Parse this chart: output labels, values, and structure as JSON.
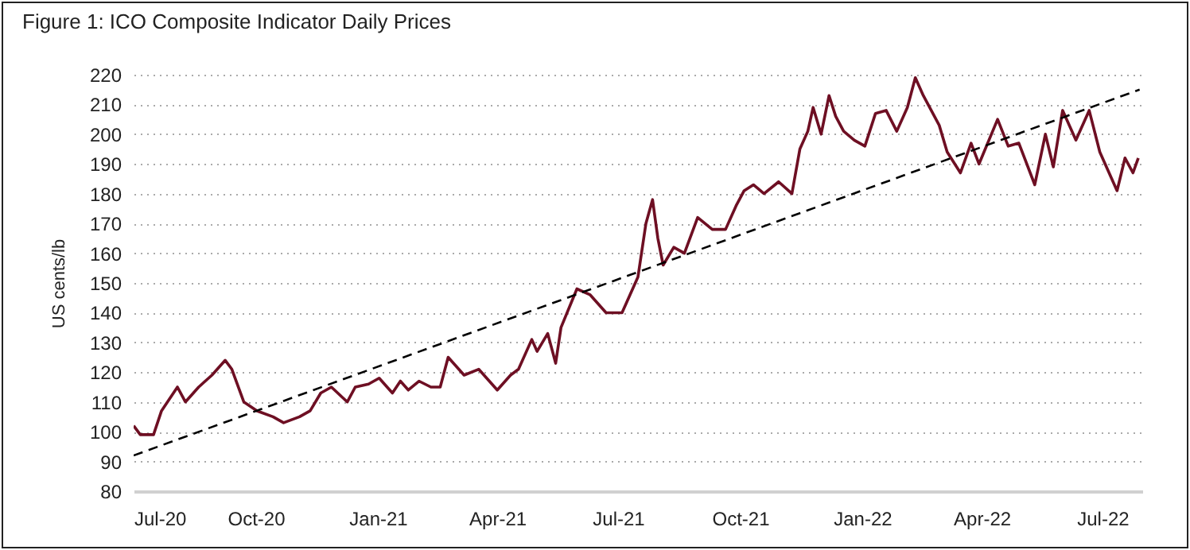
{
  "chart_data": {
    "type": "line",
    "title": "Figure 1: ICO Composite Indicator Daily Prices",
    "ylabel": "US cents/lb",
    "xlim": [
      "2020-07-01",
      "2022-07-31"
    ],
    "ylim": [
      80,
      220
    ],
    "yticks": [
      80,
      90,
      100,
      110,
      120,
      130,
      140,
      150,
      160,
      170,
      180,
      190,
      200,
      210,
      220
    ],
    "xticks": [
      {
        "value": "2020-07-01",
        "label": "Jul-20"
      },
      {
        "value": "2020-10-01",
        "label": "Oct-20"
      },
      {
        "value": "2021-01-01",
        "label": "Jan-21"
      },
      {
        "value": "2021-04-01",
        "label": "Apr-21"
      },
      {
        "value": "2021-07-01",
        "label": "Jul-21"
      },
      {
        "value": "2021-10-01",
        "label": "Oct-21"
      },
      {
        "value": "2022-01-01",
        "label": "Jan-22"
      },
      {
        "value": "2022-04-01",
        "label": "Apr-22"
      },
      {
        "value": "2022-07-01",
        "label": "Jul-22"
      }
    ],
    "grid": "y",
    "legend": false,
    "marker": "none",
    "series": [
      {
        "color": "#6e0f23",
        "line_style": "solid",
        "x": [
          "2020-07-01",
          "2020-07-06",
          "2020-07-16",
          "2020-07-22",
          "2020-08-03",
          "2020-08-09",
          "2020-08-19",
          "2020-08-29",
          "2020-09-08",
          "2020-09-13",
          "2020-09-22",
          "2020-10-02",
          "2020-10-14",
          "2020-10-22",
          "2020-11-03",
          "2020-11-11",
          "2020-11-19",
          "2020-11-27",
          "2020-12-09",
          "2020-12-15",
          "2020-12-25",
          "2021-01-02",
          "2021-01-12",
          "2021-01-18",
          "2021-01-24",
          "2021-02-01",
          "2021-02-10",
          "2021-02-17",
          "2021-02-23",
          "2021-03-07",
          "2021-03-18",
          "2021-04-01",
          "2021-04-11",
          "2021-04-17",
          "2021-04-27",
          "2021-05-01",
          "2021-05-09",
          "2021-05-15",
          "2021-05-19",
          "2021-05-31",
          "2021-06-10",
          "2021-06-22",
          "2021-07-04",
          "2021-07-16",
          "2021-07-22",
          "2021-07-27",
          "2021-07-31",
          "2021-08-04",
          "2021-08-12",
          "2021-08-20",
          "2021-08-30",
          "2021-09-10",
          "2021-09-20",
          "2021-09-28",
          "2021-10-04",
          "2021-10-11",
          "2021-10-19",
          "2021-10-30",
          "2021-11-09",
          "2021-11-15",
          "2021-11-21",
          "2021-11-25",
          "2021-12-01",
          "2021-12-07",
          "2021-12-12",
          "2021-12-18",
          "2021-12-26",
          "2022-01-03",
          "2022-01-11",
          "2022-01-19",
          "2022-01-27",
          "2022-02-04",
          "2022-02-10",
          "2022-02-16",
          "2022-02-28",
          "2022-03-06",
          "2022-03-16",
          "2022-03-24",
          "2022-03-30",
          "2022-04-13",
          "2022-04-21",
          "2022-04-29",
          "2022-05-11",
          "2022-05-19",
          "2022-05-25",
          "2022-06-01",
          "2022-06-11",
          "2022-06-21",
          "2022-06-29",
          "2022-07-12",
          "2022-07-18",
          "2022-07-24",
          "2022-07-28"
        ],
        "values": [
          102,
          99,
          99,
          107,
          115,
          110,
          115,
          119,
          124,
          121,
          110,
          107,
          105,
          103,
          105,
          107,
          113,
          115,
          110,
          115,
          116,
          118,
          113,
          117,
          114,
          117,
          115,
          115,
          125,
          119,
          121,
          114,
          119,
          121,
          131,
          127,
          133,
          123,
          135,
          148,
          146,
          140,
          140,
          152,
          170,
          178,
          165,
          156,
          162,
          160,
          172,
          168,
          168,
          176,
          181,
          183,
          180,
          184,
          180,
          195,
          201,
          209,
          200,
          213,
          206,
          201,
          198,
          196,
          207,
          208,
          201,
          209,
          219,
          213,
          203,
          194,
          187,
          197,
          190,
          205,
          196,
          197,
          183,
          200,
          189,
          208,
          198,
          208,
          194,
          181,
          192,
          187,
          192
        ]
      },
      {
        "color": "#000000",
        "line_style": "dashed",
        "x": [
          "2020-07-01",
          "2022-07-29"
        ],
        "values": [
          92,
          215
        ]
      }
    ]
  }
}
